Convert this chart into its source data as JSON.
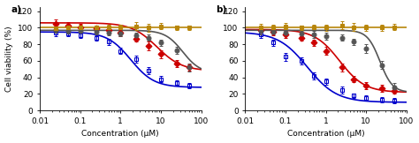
{
  "panel_a": {
    "label": "a)",
    "series": [
      {
        "color": "#CC0000",
        "marker": "D",
        "markerfacecolor": "#CC0000",
        "markeredgecolor": "#CC0000",
        "x": [
          0.025,
          0.05,
          0.1,
          0.25,
          0.5,
          1.0,
          2.5,
          5.0,
          10.0,
          25.0,
          50.0
        ],
        "y": [
          105,
          103,
          101,
          99,
          97,
          94,
          87,
          78,
          68,
          57,
          52
        ],
        "yerr": [
          5,
          4,
          4,
          3,
          3,
          4,
          4,
          5,
          5,
          4,
          4
        ],
        "hill_top": 106,
        "hill_bottom": 48,
        "hill_ec50": 8.0,
        "hill_n": 1.4
      },
      {
        "color": "#0000CC",
        "marker": "s",
        "markerfacecolor": "none",
        "markeredgecolor": "#0000CC",
        "x": [
          0.025,
          0.05,
          0.1,
          0.25,
          0.5,
          1.0,
          2.5,
          5.0,
          10.0,
          25.0,
          50.0
        ],
        "y": [
          94,
          93,
          91,
          88,
          83,
          72,
          62,
          48,
          38,
          33,
          30
        ],
        "yerr": [
          4,
          3,
          3,
          3,
          4,
          4,
          4,
          4,
          4,
          3,
          3
        ],
        "hill_top": 95,
        "hill_bottom": 28,
        "hill_ec50": 1.8,
        "hill_n": 1.5
      },
      {
        "color": "#555555",
        "marker": "o",
        "markerfacecolor": "#555555",
        "markeredgecolor": "#555555",
        "x": [
          0.025,
          0.05,
          0.1,
          0.25,
          0.5,
          1.0,
          2.5,
          5.0,
          10.0,
          25.0,
          50.0
        ],
        "y": [
          97,
          96,
          96,
          95,
          94,
          93,
          91,
          88,
          82,
          73,
          52
        ],
        "yerr": [
          3,
          3,
          3,
          3,
          3,
          3,
          3,
          4,
          4,
          4,
          5
        ],
        "hill_top": 97,
        "hill_bottom": 45,
        "hill_ec50": 35.0,
        "hill_n": 2.0
      },
      {
        "color": "#B8860B",
        "marker": "s",
        "markerfacecolor": "#B8860B",
        "markeredgecolor": "#B8860B",
        "x": [
          0.025,
          0.05,
          0.1,
          0.25,
          0.5,
          1.0,
          2.5,
          5.0,
          10.0,
          25.0,
          50.0
        ],
        "y": [
          99,
          100,
          101,
          100,
          101,
          100,
          102,
          100,
          102,
          100,
          100
        ],
        "yerr": [
          3,
          3,
          3,
          3,
          3,
          4,
          5,
          5,
          4,
          3,
          3
        ],
        "hill_top": 101,
        "hill_bottom": 101,
        "hill_ec50": 1000.0,
        "hill_n": 1.0
      }
    ]
  },
  "panel_b": {
    "label": "b)",
    "series": [
      {
        "color": "#CC0000",
        "marker": "D",
        "markerfacecolor": "#CC0000",
        "markeredgecolor": "#CC0000",
        "x": [
          0.025,
          0.05,
          0.1,
          0.25,
          0.5,
          1.0,
          2.5,
          5.0,
          10.0,
          25.0,
          50.0
        ],
        "y": [
          97,
          95,
          92,
          88,
          82,
          72,
          52,
          38,
          30,
          27,
          24
        ],
        "yerr": [
          5,
          4,
          4,
          4,
          4,
          5,
          5,
          4,
          4,
          4,
          3
        ],
        "hill_top": 98,
        "hill_bottom": 22,
        "hill_ec50": 2.2,
        "hill_n": 1.4
      },
      {
        "color": "#0000CC",
        "marker": "s",
        "markerfacecolor": "none",
        "markeredgecolor": "#0000CC",
        "x": [
          0.025,
          0.05,
          0.1,
          0.25,
          0.5,
          1.0,
          2.5,
          5.0,
          10.0,
          25.0,
          50.0
        ],
        "y": [
          92,
          82,
          65,
          60,
          42,
          35,
          25,
          18,
          15,
          13,
          12
        ],
        "yerr": [
          4,
          4,
          5,
          4,
          4,
          4,
          4,
          3,
          3,
          3,
          3
        ],
        "hill_top": 95,
        "hill_bottom": 10,
        "hill_ec50": 0.35,
        "hill_n": 1.2
      },
      {
        "color": "#555555",
        "marker": "o",
        "markerfacecolor": "#555555",
        "markeredgecolor": "#555555",
        "x": [
          0.025,
          0.05,
          0.1,
          0.25,
          0.5,
          1.0,
          2.5,
          5.0,
          10.0,
          25.0,
          50.0
        ],
        "y": [
          96,
          95,
          94,
          93,
          92,
          90,
          88,
          83,
          75,
          55,
          28
        ],
        "yerr": [
          4,
          3,
          3,
          3,
          4,
          4,
          4,
          4,
          5,
          5,
          5
        ],
        "hill_top": 97,
        "hill_bottom": 22,
        "hill_ec50": 22.0,
        "hill_n": 2.8
      },
      {
        "color": "#B8860B",
        "marker": "s",
        "markerfacecolor": "#B8860B",
        "markeredgecolor": "#B8860B",
        "x": [
          0.025,
          0.05,
          0.1,
          0.25,
          0.5,
          1.0,
          2.5,
          5.0,
          10.0,
          25.0,
          50.0
        ],
        "y": [
          101,
          101,
          102,
          100,
          101,
          100,
          103,
          101,
          100,
          100,
          101
        ],
        "yerr": [
          4,
          3,
          4,
          3,
          3,
          4,
          5,
          5,
          4,
          4,
          4
        ],
        "hill_top": 101,
        "hill_bottom": 101,
        "hill_ec50": 1000.0,
        "hill_n": 1.0
      }
    ]
  },
  "xlabel": "Concentration (μM)",
  "ylabel": "Cell viability (%)",
  "xlim": [
    0.01,
    100
  ],
  "ylim": [
    0,
    125
  ],
  "yticks": [
    0,
    20,
    40,
    60,
    80,
    100,
    120
  ],
  "xticks": [
    0.01,
    0.1,
    1,
    10,
    100
  ],
  "xtick_labels": [
    "0.01",
    "0.1",
    "1",
    "10",
    "100"
  ],
  "background_color": "#ffffff",
  "fontsize": 6.5,
  "linewidth": 1.2,
  "markersize": 3.5,
  "capsize": 1.5
}
